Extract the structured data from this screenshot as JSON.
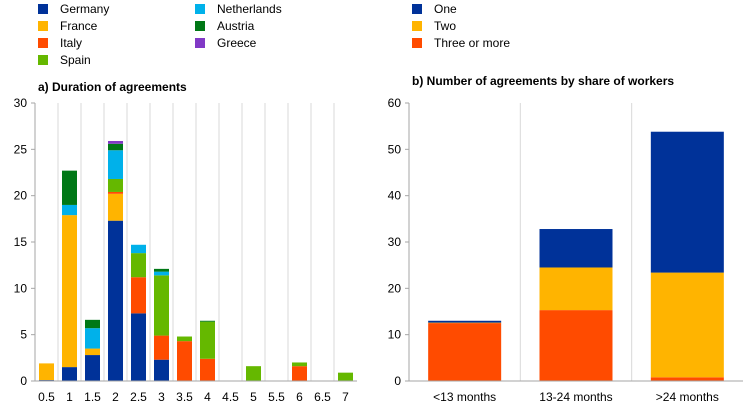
{
  "colors": {
    "blue": "#003299",
    "yellow": "#FFB400",
    "orange": "#FF4B00",
    "green": "#65B800",
    "cyan": "#00B1EA",
    "darkgreen": "#007816",
    "purple": "#8139C6",
    "grid": "#d9d9d9",
    "axis": "#a6a6a6"
  },
  "chart_data": [
    {
      "type": "bar",
      "stacked": true,
      "title": "a) Duration of agreements",
      "xlabel": "",
      "ylabel": "",
      "ylim": [
        0,
        30
      ],
      "yticks": [
        0,
        5,
        10,
        15,
        20,
        25,
        30
      ],
      "categories": [
        "0.5",
        "1",
        "1.5",
        "2",
        "2.5",
        "3",
        "3.5",
        "4",
        "4.5",
        "5",
        "5.5",
        "6",
        "6.5",
        "7"
      ],
      "grid": "vertical",
      "legend_position": "top-left",
      "series": [
        {
          "name": "Germany",
          "color": "blue",
          "values": [
            0.1,
            1.5,
            2.8,
            17.3,
            7.3,
            2.3,
            0,
            0,
            0,
            0,
            0,
            0,
            0,
            0
          ]
        },
        {
          "name": "France",
          "color": "yellow",
          "values": [
            1.8,
            16.4,
            0.7,
            2.9,
            0,
            0,
            0,
            0,
            0,
            0,
            0,
            0,
            0,
            0
          ]
        },
        {
          "name": "Italy",
          "color": "orange",
          "values": [
            0,
            0,
            0,
            0.2,
            3.9,
            2.6,
            4.3,
            2.4,
            0,
            0,
            0,
            1.6,
            0,
            0
          ]
        },
        {
          "name": "Spain",
          "color": "green",
          "values": [
            0,
            0,
            0,
            1.4,
            2.6,
            6.5,
            0.5,
            4.0,
            0,
            1.6,
            0,
            0.4,
            0,
            0.9
          ]
        },
        {
          "name": "Netherlands",
          "color": "cyan",
          "values": [
            0,
            1.1,
            2.2,
            3.1,
            0.9,
            0.4,
            0,
            0,
            0,
            0,
            0,
            0,
            0,
            0
          ]
        },
        {
          "name": "Austria",
          "color": "darkgreen",
          "values": [
            0,
            3.7,
            0.9,
            0.7,
            0,
            0.3,
            0,
            0.1,
            0,
            0,
            0,
            0,
            0,
            0
          ]
        },
        {
          "name": "Greece",
          "color": "purple",
          "values": [
            0,
            0,
            0,
            0.3,
            0,
            0,
            0,
            0,
            0,
            0,
            0,
            0,
            0,
            0
          ]
        }
      ]
    },
    {
      "type": "bar",
      "stacked": true,
      "title": "b) Number of agreements by share of workers",
      "xlabel": "",
      "ylabel": "",
      "ylim": [
        0,
        60
      ],
      "yticks": [
        0,
        10,
        20,
        30,
        40,
        50,
        60
      ],
      "categories": [
        "<13 months",
        "13-24 months",
        ">24 months"
      ],
      "grid": "vertical",
      "legend_position": "top-left",
      "series": [
        {
          "name": "Three or more",
          "color": "orange",
          "values": [
            12.5,
            15.3,
            0.8
          ]
        },
        {
          "name": "Two",
          "color": "yellow",
          "values": [
            0.1,
            9.2,
            22.6
          ]
        },
        {
          "name": "One",
          "color": "blue",
          "values": [
            0.4,
            8.3,
            30.4
          ]
        }
      ]
    }
  ],
  "legend_left": [
    "Germany",
    "France",
    "Italy",
    "Spain",
    "Netherlands",
    "Austria",
    "Greece"
  ],
  "legend_right": [
    "One",
    "Two",
    "Three or more"
  ]
}
